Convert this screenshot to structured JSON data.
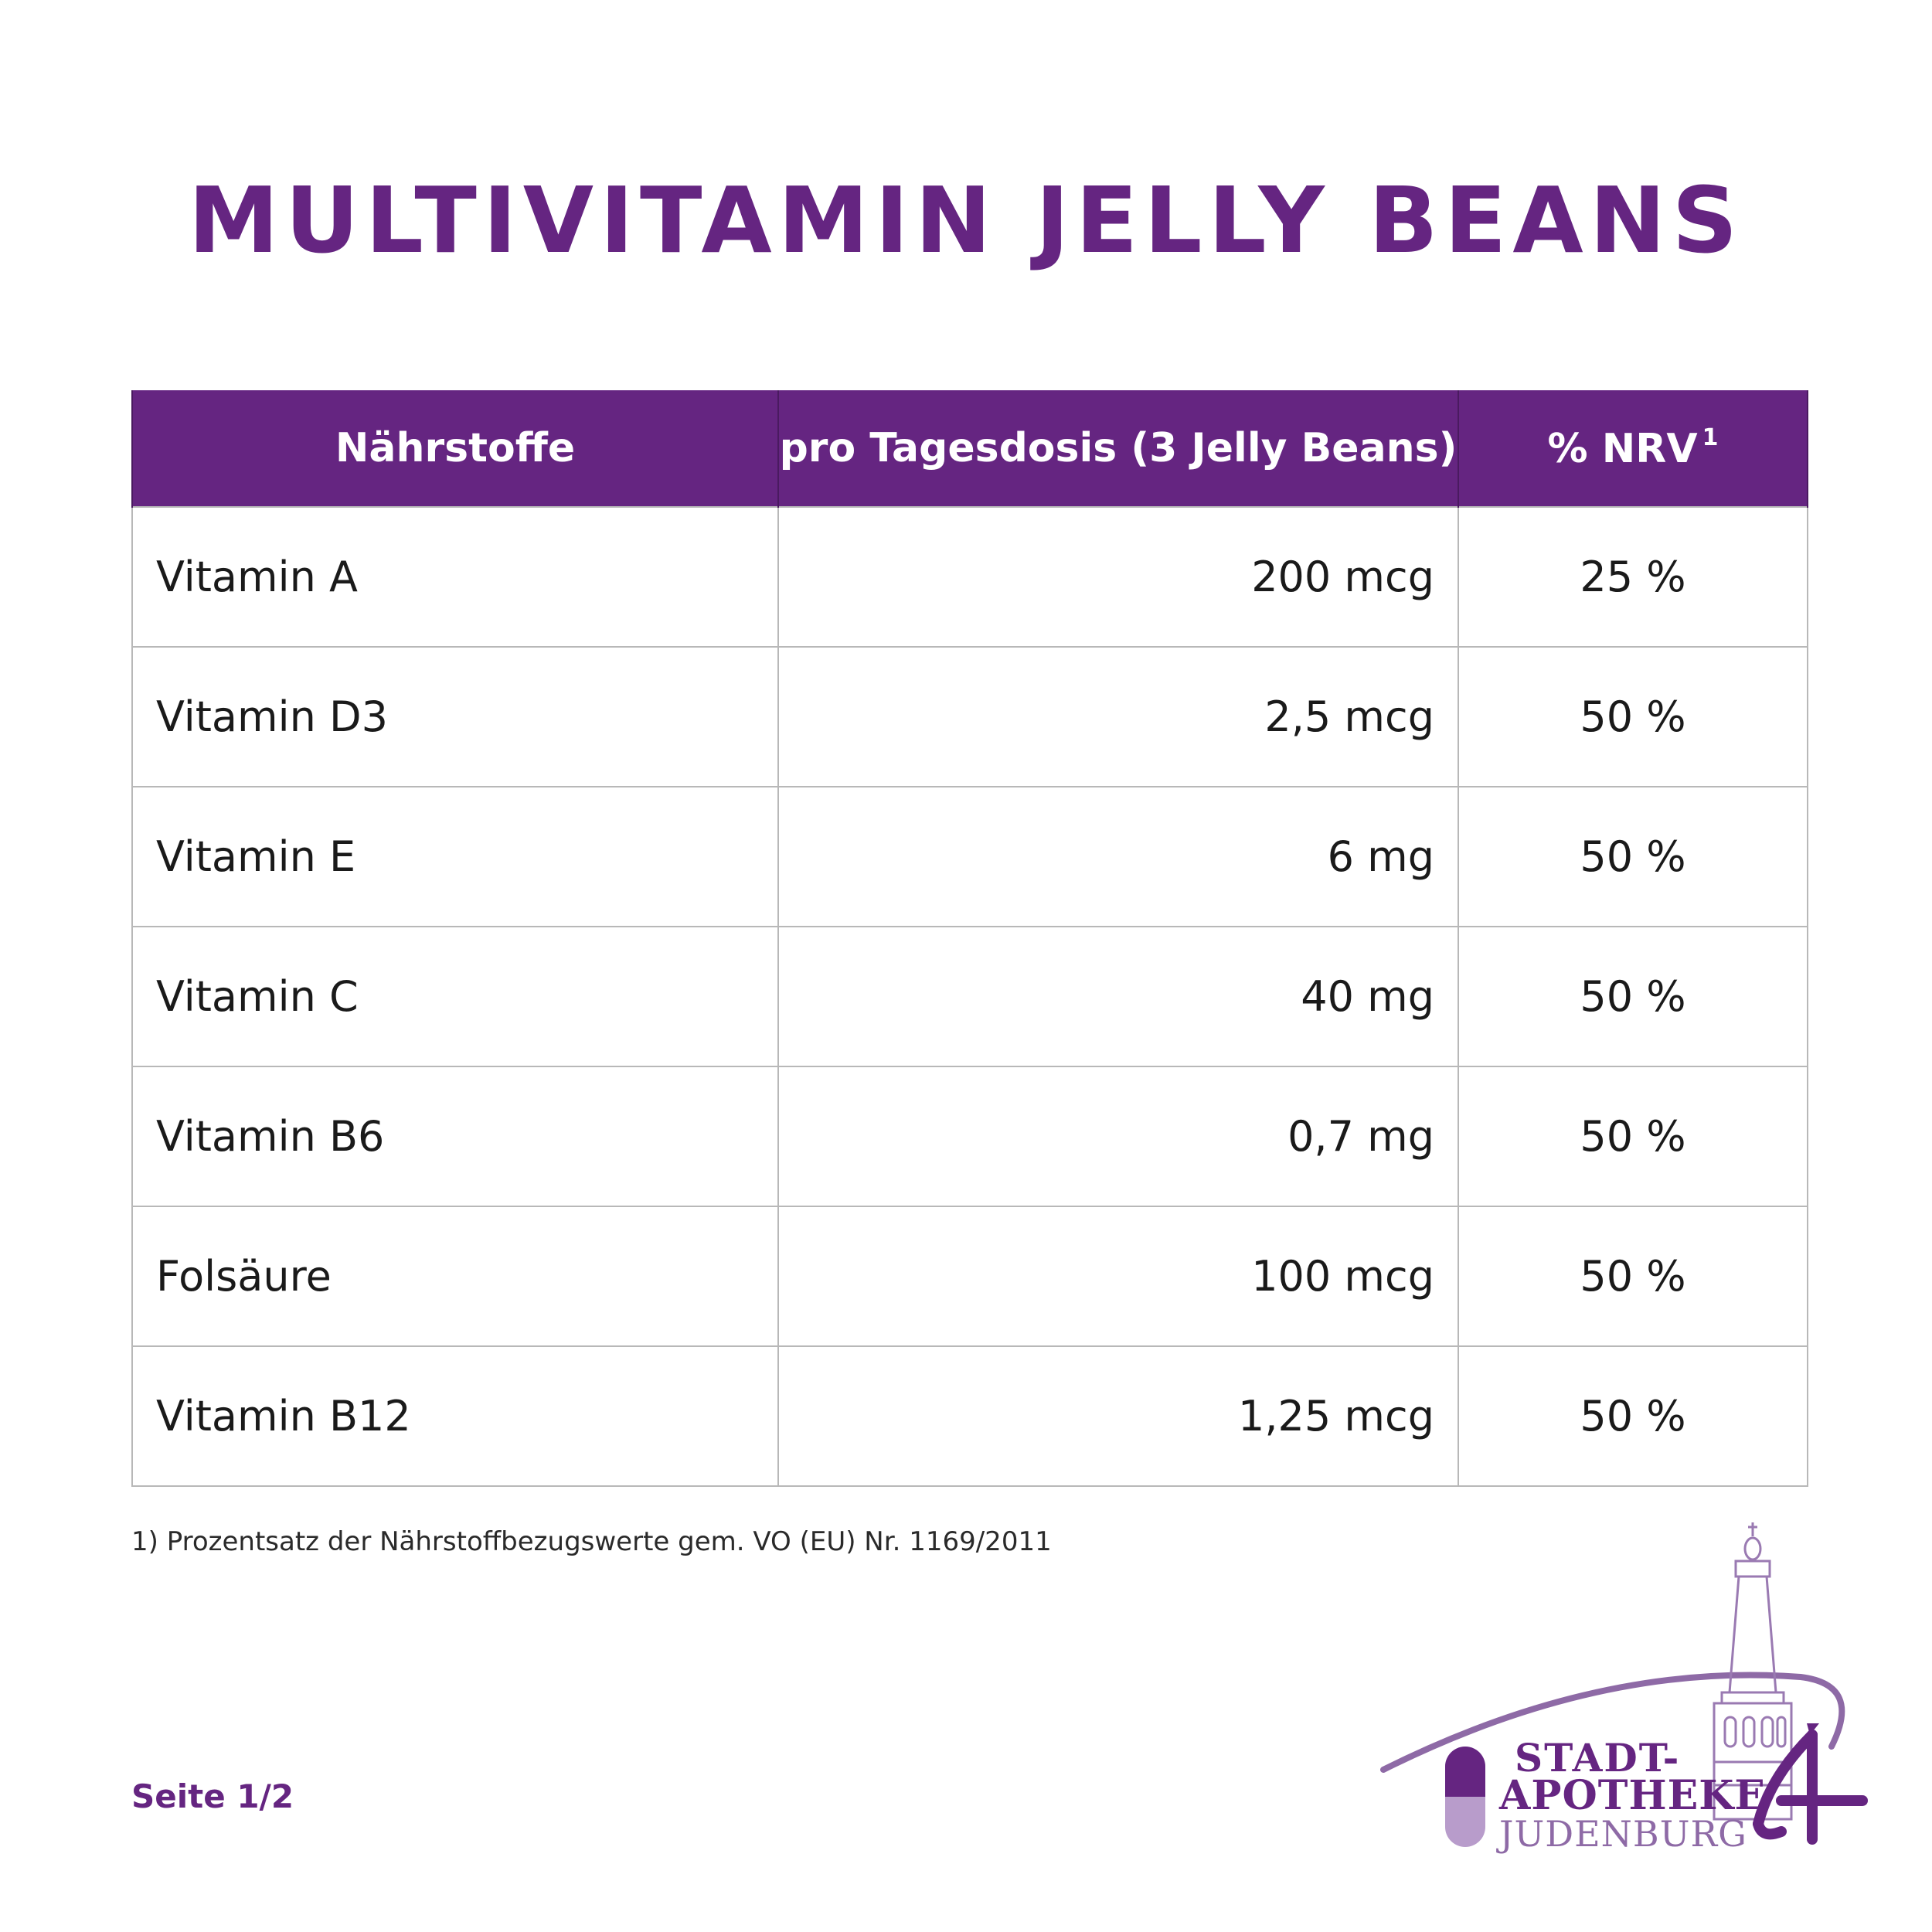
{
  "title": "MULTIVITAMIN JELLY BEANS",
  "table": {
    "headers": {
      "nutrient": "Nährstoffe",
      "dose": "pro Tagesdosis (3 Jelly Beans)",
      "nrv": "% NRV",
      "nrv_footnote_mark": "1"
    },
    "rows": [
      {
        "nutrient": "Vitamin A",
        "dose": "200 mcg",
        "nrv": "25 %"
      },
      {
        "nutrient": "Vitamin D3",
        "dose": "2,5 mcg",
        "nrv": "50 %"
      },
      {
        "nutrient": "Vitamin E",
        "dose": "6 mg",
        "nrv": "50 %"
      },
      {
        "nutrient": "Vitamin C",
        "dose": "40 mg",
        "nrv": "50 %"
      },
      {
        "nutrient": "Vitamin B6",
        "dose": "0,7 mg",
        "nrv": "50 %"
      },
      {
        "nutrient": "Folsäure",
        "dose": "100 mcg",
        "nrv": "50 %"
      },
      {
        "nutrient": "Vitamin B12",
        "dose": "1,25 mcg",
        "nrv": "50 %"
      }
    ]
  },
  "footnote": "1) Prozentsatz der Nährstoffbezugswerte gem. VO (EU) Nr. 1169/2011",
  "page_indicator": "Seite 1/2",
  "logo": {
    "line1": "STADT-",
    "line2": "APOTHEKE",
    "line3": "JUDENBURG",
    "icon": "church-tower-logo",
    "primary_color": "#652581",
    "secondary_color": "#8e6aa6"
  },
  "colors": {
    "accent": "#652581",
    "grid": "#b8b8b8"
  }
}
